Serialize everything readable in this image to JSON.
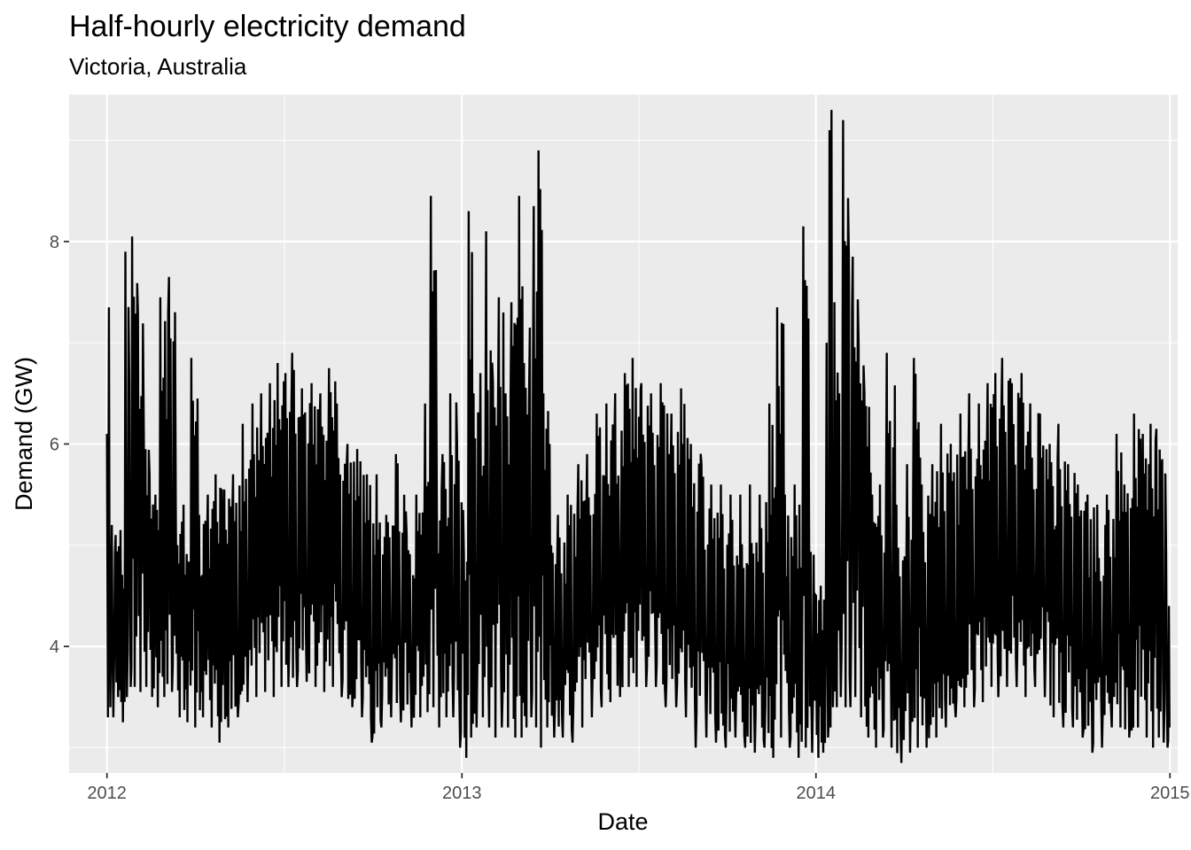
{
  "chart_data": {
    "type": "line",
    "title": "Half-hourly electricity demand",
    "subtitle": "Victoria, Australia",
    "xlabel": "Date",
    "ylabel": "Demand (GW)",
    "x_ticks": [
      "2012",
      "2013",
      "2014",
      "2015"
    ],
    "y_ticks": [
      "4",
      "6",
      "8"
    ],
    "xlim": [
      "2011-11-23",
      "2015-01-09"
    ],
    "ylim": [
      2.75,
      9.45
    ],
    "grid": true,
    "legend": "none",
    "series": [
      {
        "color": "#000000",
        "points": [
          [
            "2012-01-01",
            3.3,
            6.1
          ],
          [
            "2012-01-03",
            3.4,
            7.35
          ],
          [
            "2012-01-06",
            3.3,
            5.2
          ],
          [
            "2012-01-10",
            3.5,
            5.1
          ],
          [
            "2012-01-15",
            3.25,
            5.15
          ],
          [
            "2012-01-20",
            3.5,
            7.9
          ],
          [
            "2012-01-24",
            3.6,
            6.6
          ],
          [
            "2012-01-27",
            3.6,
            8.05
          ],
          [
            "2012-02-02",
            3.55,
            7.3
          ],
          [
            "2012-02-08",
            3.6,
            6.1
          ],
          [
            "2012-02-14",
            3.5,
            5.7
          ],
          [
            "2012-02-20",
            3.4,
            5.5
          ],
          [
            "2012-02-25",
            3.5,
            7.45
          ],
          [
            "2012-03-05",
            3.55,
            7.65
          ],
          [
            "2012-03-12",
            3.3,
            5.3
          ],
          [
            "2012-03-20",
            3.25,
            5.4
          ],
          [
            "2012-03-28",
            3.2,
            6.85
          ],
          [
            "2012-04-05",
            3.3,
            5.3
          ],
          [
            "2012-04-14",
            3.2,
            5.5
          ],
          [
            "2012-04-22",
            3.05,
            5.7
          ],
          [
            "2012-05-01",
            3.2,
            5.55
          ],
          [
            "2012-05-10",
            3.3,
            5.7
          ],
          [
            "2012-05-20",
            3.45,
            6.2
          ],
          [
            "2012-05-30",
            3.5,
            6.4
          ],
          [
            "2012-06-08",
            3.55,
            6.5
          ],
          [
            "2012-06-17",
            3.5,
            6.6
          ],
          [
            "2012-06-25",
            3.6,
            6.8
          ],
          [
            "2012-07-03",
            3.6,
            6.7
          ],
          [
            "2012-07-10",
            3.6,
            6.9
          ],
          [
            "2012-07-20",
            3.65,
            6.55
          ],
          [
            "2012-07-30",
            3.6,
            6.6
          ],
          [
            "2012-08-08",
            3.55,
            6.5
          ],
          [
            "2012-08-17",
            3.6,
            6.75
          ],
          [
            "2012-08-25",
            3.5,
            6.4
          ],
          [
            "2012-09-05",
            3.4,
            6.0
          ],
          [
            "2012-09-15",
            3.3,
            5.95
          ],
          [
            "2012-09-25",
            3.05,
            5.7
          ],
          [
            "2012-10-05",
            3.2,
            5.7
          ],
          [
            "2012-10-15",
            3.3,
            5.3
          ],
          [
            "2012-10-25",
            3.25,
            5.9
          ],
          [
            "2012-11-05",
            3.2,
            5.1
          ],
          [
            "2012-11-15",
            3.3,
            5.5
          ],
          [
            "2012-11-24",
            3.35,
            6.4
          ],
          [
            "2012-11-30",
            3.4,
            8.45
          ],
          [
            "2012-12-06",
            3.2,
            5.7
          ],
          [
            "2012-12-12",
            3.3,
            5.9
          ],
          [
            "2012-12-20",
            3.3,
            6.5
          ],
          [
            "2012-12-27",
            3.0,
            6.0
          ],
          [
            "2013-01-03",
            2.9,
            4.9
          ],
          [
            "2013-01-08",
            3.1,
            8.3
          ],
          [
            "2013-01-13",
            3.2,
            6.5
          ],
          [
            "2013-01-20",
            3.3,
            6.7
          ],
          [
            "2013-01-26",
            3.2,
            8.1
          ],
          [
            "2013-02-02",
            3.1,
            6.6
          ],
          [
            "2013-02-08",
            3.2,
            7.45
          ],
          [
            "2013-02-15",
            3.2,
            6.5
          ],
          [
            "2013-02-21",
            3.1,
            7.4
          ],
          [
            "2013-03-01",
            3.1,
            8.45
          ],
          [
            "2013-03-06",
            3.2,
            6.8
          ],
          [
            "2013-03-12",
            3.3,
            7.15
          ],
          [
            "2013-03-16",
            3.2,
            8.35
          ],
          [
            "2013-03-21",
            3.0,
            8.9
          ],
          [
            "2013-03-26",
            3.2,
            6.5
          ],
          [
            "2013-04-03",
            3.1,
            5.0
          ],
          [
            "2013-04-10",
            3.1,
            5.3
          ],
          [
            "2013-04-20",
            3.05,
            5.5
          ],
          [
            "2013-05-01",
            3.2,
            5.8
          ],
          [
            "2013-05-10",
            3.3,
            5.9
          ],
          [
            "2013-05-20",
            3.4,
            6.3
          ],
          [
            "2013-05-30",
            3.45,
            6.4
          ],
          [
            "2013-06-08",
            3.5,
            6.5
          ],
          [
            "2013-06-18",
            3.6,
            6.7
          ],
          [
            "2013-06-26",
            3.6,
            6.85
          ],
          [
            "2013-07-05",
            3.6,
            6.6
          ],
          [
            "2013-07-15",
            3.6,
            6.5
          ],
          [
            "2013-07-25",
            3.4,
            6.6
          ],
          [
            "2013-08-05",
            3.4,
            6.3
          ],
          [
            "2013-08-15",
            3.3,
            6.55
          ],
          [
            "2013-08-25",
            3.0,
            6.0
          ],
          [
            "2013-09-05",
            3.1,
            5.8
          ],
          [
            "2013-09-15",
            3.05,
            5.6
          ],
          [
            "2013-09-25",
            3.0,
            5.6
          ],
          [
            "2013-10-05",
            3.1,
            5.5
          ],
          [
            "2013-10-15",
            3.0,
            5.5
          ],
          [
            "2013-10-25",
            2.95,
            5.6
          ],
          [
            "2013-11-04",
            3.0,
            5.5
          ],
          [
            "2013-11-14",
            2.9,
            6.4
          ],
          [
            "2013-11-22",
            3.1,
            7.35
          ],
          [
            "2013-11-30",
            3.0,
            5.5
          ],
          [
            "2013-12-10",
            2.9,
            5.6
          ],
          [
            "2013-12-19",
            3.0,
            8.15
          ],
          [
            "2013-12-25",
            2.95,
            5.0
          ],
          [
            "2014-01-01",
            2.9,
            4.5
          ],
          [
            "2014-01-06",
            2.95,
            4.6
          ],
          [
            "2014-01-12",
            3.1,
            7.0
          ],
          [
            "2014-01-15",
            3.2,
            9.1
          ],
          [
            "2014-01-17",
            3.4,
            9.3
          ],
          [
            "2014-01-20",
            3.4,
            7.4
          ],
          [
            "2014-01-25",
            3.5,
            6.5
          ],
          [
            "2014-01-29",
            3.4,
            9.2
          ],
          [
            "2014-02-04",
            3.4,
            7.8
          ],
          [
            "2014-02-08",
            3.5,
            7.85
          ],
          [
            "2014-02-14",
            3.3,
            7.0
          ],
          [
            "2014-02-20",
            3.1,
            6.5
          ],
          [
            "2014-02-28",
            3.0,
            5.5
          ],
          [
            "2014-03-08",
            3.1,
            5.6
          ],
          [
            "2014-03-15",
            3.0,
            6.9
          ],
          [
            "2014-03-25",
            2.85,
            5.4
          ],
          [
            "2014-04-05",
            2.95,
            5.8
          ],
          [
            "2014-04-12",
            3.0,
            6.85
          ],
          [
            "2014-04-20",
            3.0,
            5.6
          ],
          [
            "2014-05-01",
            3.1,
            5.8
          ],
          [
            "2014-05-10",
            3.2,
            6.2
          ],
          [
            "2014-05-20",
            3.3,
            6.0
          ],
          [
            "2014-05-30",
            3.4,
            6.3
          ],
          [
            "2014-06-08",
            3.4,
            6.5
          ],
          [
            "2014-06-18",
            3.45,
            6.4
          ],
          [
            "2014-06-27",
            3.6,
            6.6
          ],
          [
            "2014-07-05",
            3.5,
            6.7
          ],
          [
            "2014-07-12",
            3.6,
            6.85
          ],
          [
            "2014-07-22",
            3.6,
            6.6
          ],
          [
            "2014-08-01",
            3.5,
            6.7
          ],
          [
            "2014-08-10",
            3.6,
            6.4
          ],
          [
            "2014-08-20",
            3.5,
            6.3
          ],
          [
            "2014-08-30",
            3.3,
            6.0
          ],
          [
            "2014-09-08",
            3.2,
            6.2
          ],
          [
            "2014-09-18",
            3.2,
            5.8
          ],
          [
            "2014-09-28",
            3.1,
            5.6
          ],
          [
            "2014-10-08",
            2.95,
            5.5
          ],
          [
            "2014-10-18",
            3.0,
            5.4
          ],
          [
            "2014-10-28",
            3.2,
            5.5
          ],
          [
            "2014-11-07",
            3.2,
            6.1
          ],
          [
            "2014-11-15",
            3.1,
            5.6
          ],
          [
            "2014-11-25",
            3.2,
            6.3
          ],
          [
            "2014-12-04",
            3.1,
            6.1
          ],
          [
            "2014-12-12",
            3.0,
            6.2
          ],
          [
            "2014-12-18",
            3.1,
            6.15
          ],
          [
            "2014-12-24",
            3.05,
            5.85
          ],
          [
            "2014-12-28",
            3.0,
            4.95
          ],
          [
            "2014-12-31",
            3.2,
            4.4
          ]
        ]
      }
    ]
  }
}
